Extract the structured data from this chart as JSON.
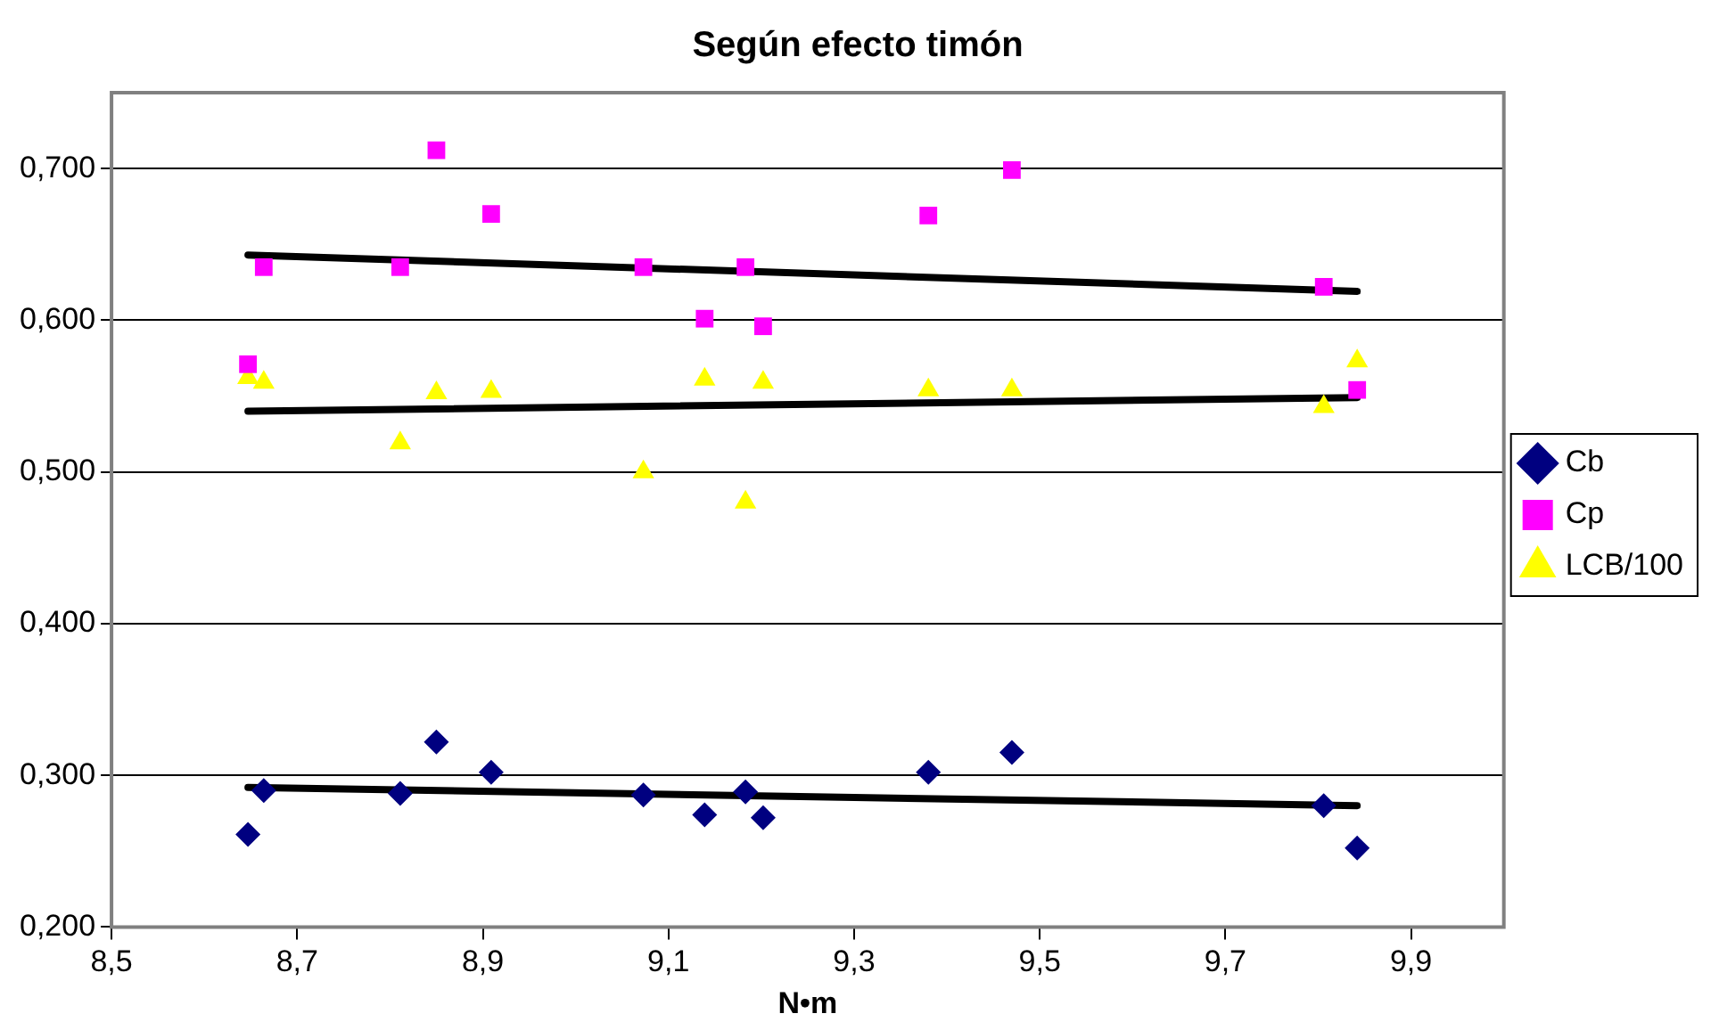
{
  "chart_data": {
    "type": "scatter",
    "title": "Según efecto timón",
    "xlabel": "N•m",
    "x": [
      8.647,
      8.664,
      8.811,
      8.85,
      8.909,
      9.073,
      9.139,
      9.183,
      9.202,
      9.38,
      9.47,
      9.806,
      9.842
    ],
    "series": [
      {
        "name": "Cb",
        "color": "#000080",
        "marker": "diamond",
        "values": [
          0.261,
          0.29,
          0.288,
          0.322,
          0.302,
          0.287,
          0.274,
          0.289,
          0.272,
          0.302,
          0.315,
          0.28,
          0.252
        ]
      },
      {
        "name": "Cp",
        "color": "#ff00ff",
        "marker": "square",
        "values": [
          0.571,
          0.635,
          0.635,
          0.712,
          0.67,
          0.635,
          0.601,
          0.635,
          0.596,
          0.669,
          0.699,
          0.622,
          0.554
        ]
      },
      {
        "name": "LCB/100",
        "color": "#ffff00",
        "marker": "triangle",
        "values": [
          0.562,
          0.559,
          0.519,
          0.552,
          0.553,
          0.5,
          0.561,
          0.48,
          0.559,
          0.554,
          0.554,
          0.543,
          0.573
        ]
      },
      {
        "type": "line",
        "color": "#000000",
        "marker": "none",
        "values": [
          0.643,
          null,
          null,
          null,
          null,
          null,
          null,
          null,
          null,
          null,
          null,
          null,
          0.619
        ]
      },
      {
        "type": "line",
        "color": "#000000",
        "marker": "none",
        "values": [
          0.54,
          null,
          null,
          null,
          null,
          null,
          null,
          null,
          null,
          null,
          null,
          null,
          0.549
        ]
      },
      {
        "type": "line",
        "color": "#000000",
        "marker": "none",
        "values": [
          0.292,
          null,
          null,
          null,
          null,
          null,
          null,
          null,
          null,
          null,
          null,
          null,
          0.28
        ]
      }
    ],
    "xlim": [
      8.5,
      10.0
    ],
    "xticks": [
      {
        "value": 8.5,
        "label": "8,5"
      },
      {
        "value": 8.7,
        "label": "8,7"
      },
      {
        "value": 8.9,
        "label": "8,9"
      },
      {
        "value": 9.1,
        "label": "9,1"
      },
      {
        "value": 9.3,
        "label": "9,3"
      },
      {
        "value": 9.5,
        "label": "9,5"
      },
      {
        "value": 9.7,
        "label": "9,7"
      },
      {
        "value": 9.9,
        "label": "9,9"
      }
    ],
    "ylim": [
      0.2,
      0.75
    ],
    "yticks": [
      {
        "value": 0.2,
        "label": "0,200"
      },
      {
        "value": 0.3,
        "label": "0,300"
      },
      {
        "value": 0.4,
        "label": "0,400"
      },
      {
        "value": 0.5,
        "label": "0,500"
      },
      {
        "value": 0.6,
        "label": "0,600"
      },
      {
        "value": 0.7,
        "label": "0,700"
      }
    ],
    "grid": "y",
    "legend": "right"
  }
}
